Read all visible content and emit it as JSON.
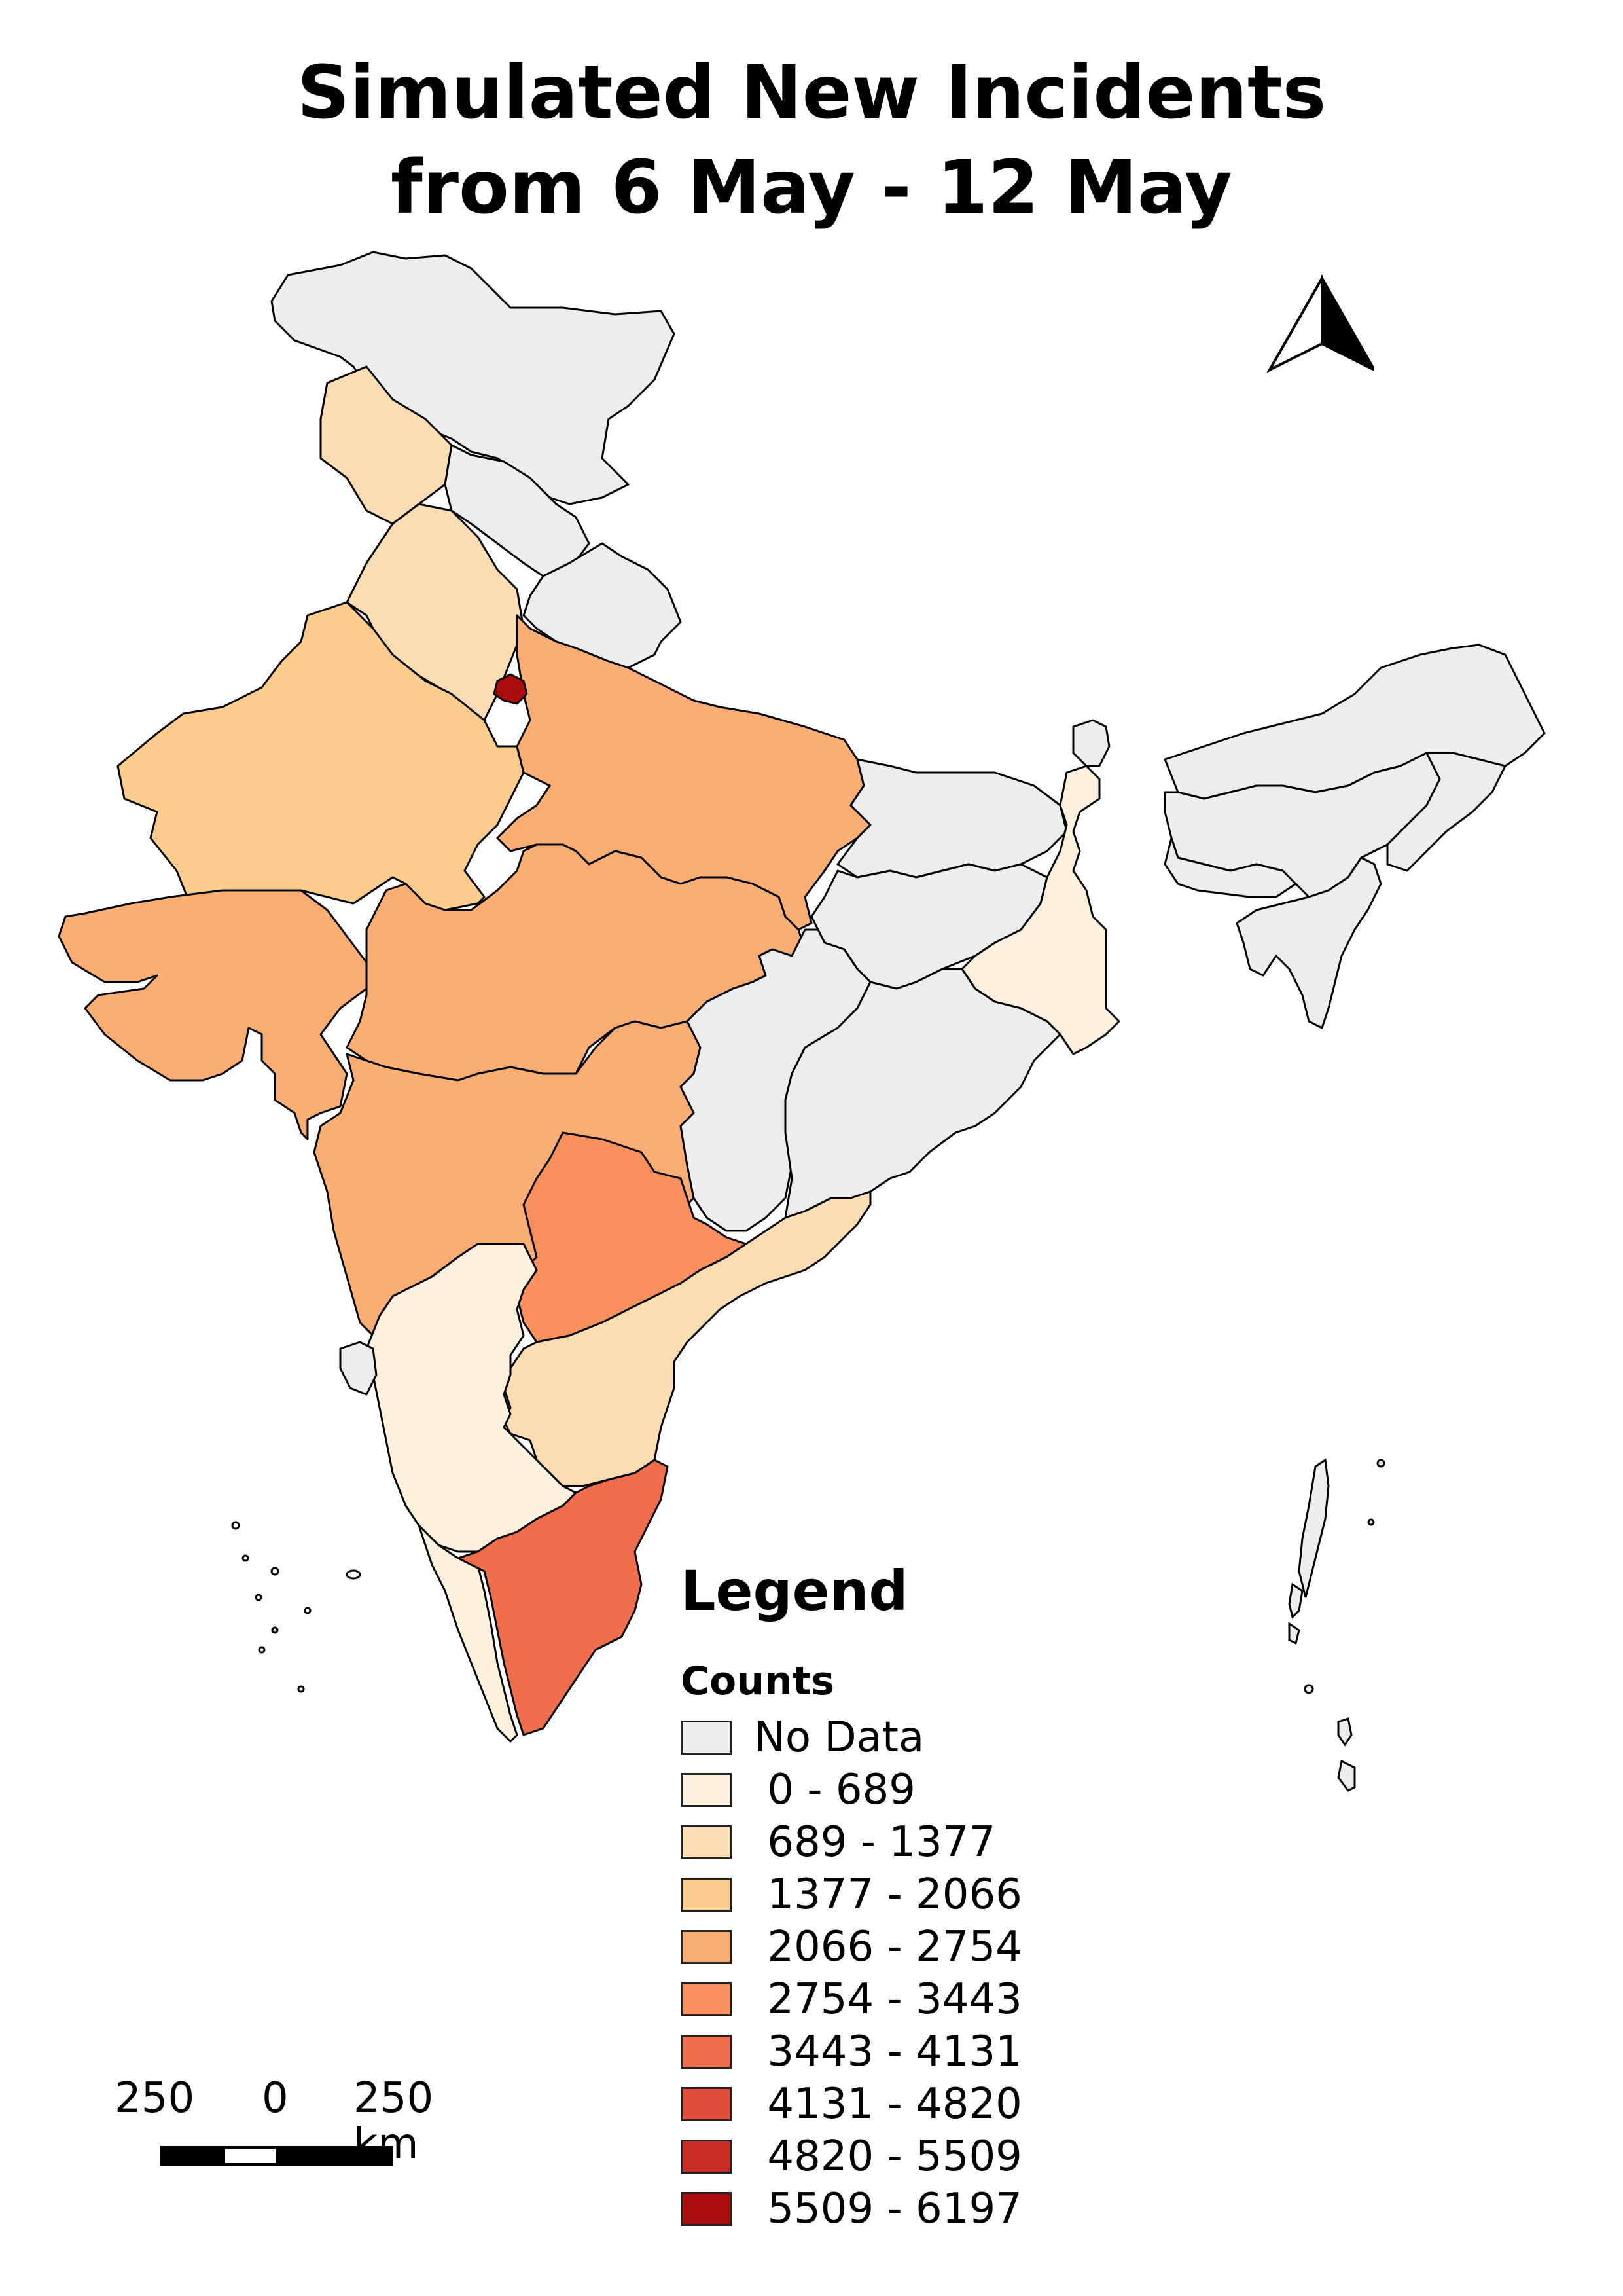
{
  "title": {
    "line1": "Simulated New Incidents",
    "line2": "from 6 May - 12 May"
  },
  "legend": {
    "title": "Legend",
    "subtitle": "Counts",
    "classes": [
      {
        "label": "No Data",
        "color": "#eceeee"
      },
      {
        "label": " 0 - 689",
        "color": "#fdf0dd"
      },
      {
        "label": " 689 - 1377",
        "color": "#fcdcb2"
      },
      {
        "label": " 1377 - 2066",
        "color": "#fccc8c"
      },
      {
        "label": " 2066 - 2754",
        "color": "#fbae74"
      },
      {
        "label": " 2754 - 3443",
        "color": "#f9905d"
      },
      {
        "label": " 3443 - 4131",
        "color": "#f06e4c"
      },
      {
        "label": " 4131 - 4820",
        "color": "#e04d3a"
      },
      {
        "label": " 4820 - 5509",
        "color": "#c82a24"
      },
      {
        "label": " 5509 - 6197",
        "color": "#ad0c0c"
      }
    ]
  },
  "scale_bar": {
    "labels": [
      "250",
      "0",
      "250 km"
    ]
  },
  "north_arrow": {
    "icon": "north-arrow-icon"
  },
  "regions": [
    {
      "id": "jammu-kashmir",
      "class_index": 0
    },
    {
      "id": "punjab",
      "class_index": 2
    },
    {
      "id": "himachal-pradesh",
      "class_index": 0
    },
    {
      "id": "haryana",
      "class_index": 2
    },
    {
      "id": "uttarakhand",
      "class_index": 0
    },
    {
      "id": "delhi",
      "class_index": 9
    },
    {
      "id": "rajasthan",
      "class_index": 3
    },
    {
      "id": "uttar-pradesh",
      "class_index": 4
    },
    {
      "id": "gujarat",
      "class_index": 4
    },
    {
      "id": "madhya-pradesh",
      "class_index": 4
    },
    {
      "id": "maharashtra",
      "class_index": 4
    },
    {
      "id": "bihar",
      "class_index": 0
    },
    {
      "id": "jharkhand",
      "class_index": 0
    },
    {
      "id": "west-bengal",
      "class_index": 1
    },
    {
      "id": "sikkim",
      "class_index": 0
    },
    {
      "id": "chhattisgarh",
      "class_index": 0
    },
    {
      "id": "odisha",
      "class_index": 0
    },
    {
      "id": "telangana",
      "class_index": 5
    },
    {
      "id": "andhra-pradesh",
      "class_index": 2
    },
    {
      "id": "karnataka",
      "class_index": 1
    },
    {
      "id": "goa",
      "class_index": 0
    },
    {
      "id": "kerala",
      "class_index": 1
    },
    {
      "id": "tamil-nadu",
      "class_index": 6
    },
    {
      "id": "north-east",
      "class_index": 0
    },
    {
      "id": "arunachal-pradesh",
      "class_index": 0
    },
    {
      "id": "assam",
      "class_index": 0
    },
    {
      "id": "meghalaya",
      "class_index": 0
    },
    {
      "id": "tripura-mizoram",
      "class_index": 0
    }
  ]
}
